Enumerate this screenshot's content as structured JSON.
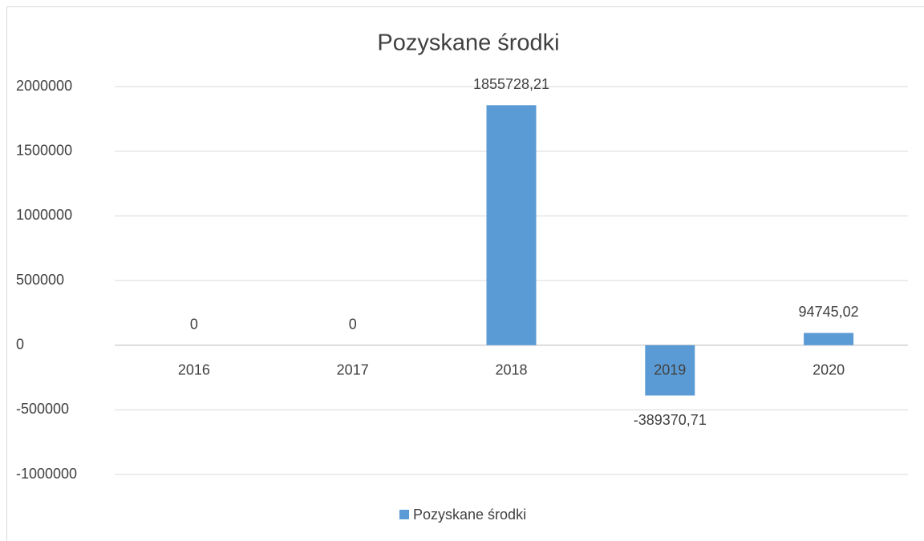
{
  "chart_data": {
    "type": "bar",
    "title": "Pozyskane środki",
    "categories": [
      "2016",
      "2017",
      "2018",
      "2019",
      "2020"
    ],
    "series": [
      {
        "name": "Pozyskane środki",
        "color": "#5b9bd5",
        "values": [
          0,
          0,
          1855728.21,
          -389370.71,
          94745.02
        ],
        "value_labels": [
          "0",
          "0",
          "1855728,21",
          "-389370,71",
          "94745,02"
        ]
      }
    ],
    "ylim": [
      -1000000,
      2000000
    ],
    "yticks": [
      -1000000,
      -500000,
      0,
      500000,
      1000000,
      1500000,
      2000000
    ],
    "grid": true,
    "legend": "bottom"
  }
}
